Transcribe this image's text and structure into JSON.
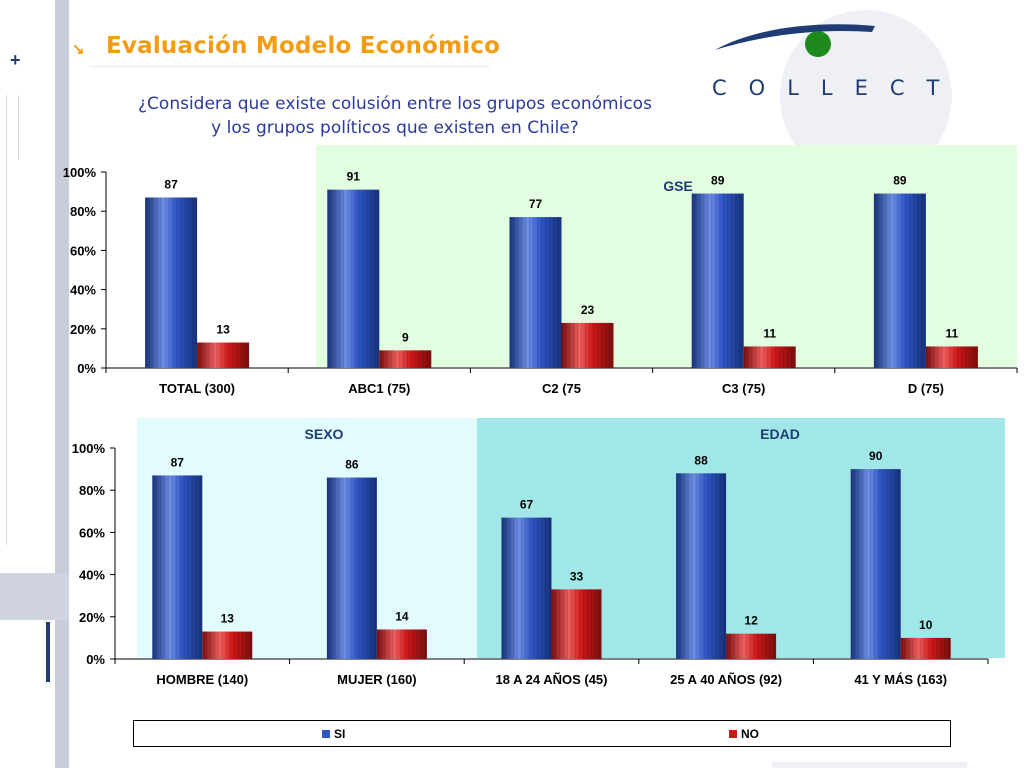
{
  "header": {
    "title": "Evaluación Modelo Económico",
    "question_line1": "¿Considera que existe colusión entre los grupos económicos",
    "question_line2": "y los grupos políticos que existen en Chile?",
    "logo_text": "COLLECT"
  },
  "colors": {
    "si": "#2f56c8",
    "no": "#d01818",
    "gse_band": "#e3fde0",
    "sexo_band": "#e2fbfc",
    "edad_band": "#a2e7e8",
    "title": "#f39c12",
    "brand": "#1f3c74"
  },
  "legend": {
    "si": "SI",
    "no": "NO"
  },
  "chart_data": [
    {
      "type": "bar",
      "categories": [
        "TOTAL (300)",
        "ABC1 (75)",
        "C2 (75",
        "C3 (75)",
        "D (75)"
      ],
      "series": [
        {
          "name": "SI",
          "values": [
            87,
            91,
            77,
            89,
            89
          ]
        },
        {
          "name": "NO",
          "values": [
            13,
            9,
            23,
            11,
            11
          ]
        }
      ],
      "ylim": [
        0,
        100
      ],
      "ytick_labels": [
        "0%",
        "20%",
        "40%",
        "60%",
        "80%",
        "100%"
      ],
      "bands": [
        {
          "label": "GSE",
          "from_category": 1,
          "to_category": 4
        }
      ]
    },
    {
      "type": "bar",
      "categories": [
        "HOMBRE (140)",
        "MUJER (160)",
        "18 A 24 AÑOS (45)",
        "25 A 40 AÑOS (92)",
        "41 Y MÁS (163)"
      ],
      "series": [
        {
          "name": "SI",
          "values": [
            87,
            86,
            67,
            88,
            90
          ]
        },
        {
          "name": "NO",
          "values": [
            13,
            14,
            33,
            12,
            10
          ]
        }
      ],
      "ylim": [
        0,
        100
      ],
      "ytick_labels": [
        "0%",
        "20%",
        "40%",
        "60%",
        "80%",
        "100%"
      ],
      "bands": [
        {
          "label": "SEXO",
          "from_category": 0,
          "to_category": 1
        },
        {
          "label": "EDAD",
          "from_category": 2,
          "to_category": 4
        }
      ]
    }
  ]
}
